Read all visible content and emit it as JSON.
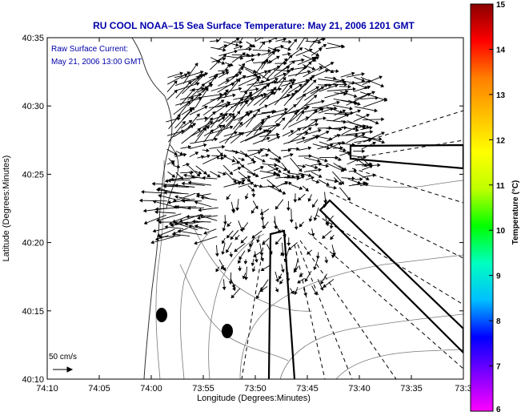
{
  "chart_data": {
    "type": "map",
    "title": "RU COOL  NOAA–15  Sea Surface Temperature:  May 21, 2006 1201 GMT",
    "annotation_line1": "Raw Surface Current:",
    "annotation_line2": "May 21, 2006 13:00 GMT",
    "xlabel": "Longitude (Degrees:Minutes)",
    "ylabel": "Latitude (Degrees:Minutes)",
    "x_ticks": [
      "74:10",
      "74:05",
      "74:00",
      "73:55",
      "73:50",
      "73:45",
      "73:40",
      "73:35",
      "73:3"
    ],
    "y_ticks": [
      "40:35",
      "40:30",
      "40:25",
      "40:20",
      "40:15",
      "40:10"
    ],
    "xlim_minutes_west": [
      4450,
      4410
    ],
    "ylim_minutes": [
      2410,
      2435
    ],
    "colorbar": {
      "label": "Temperature (°C)",
      "ticks": [
        "15",
        "14",
        "13",
        "12",
        "11",
        "10",
        "9",
        "8",
        "7",
        "6"
      ],
      "range": [
        6,
        15
      ],
      "colors": [
        "#ff00ff",
        "#7f00ff",
        "#0000ff",
        "#00bfff",
        "#00ffbf",
        "#00ff00",
        "#bfff00",
        "#ffff00",
        "#ffbf00",
        "#ff7f00",
        "#ff0000",
        "#8b0000"
      ]
    },
    "scale_arrow_label": "50 cm/s",
    "grid": false
  }
}
